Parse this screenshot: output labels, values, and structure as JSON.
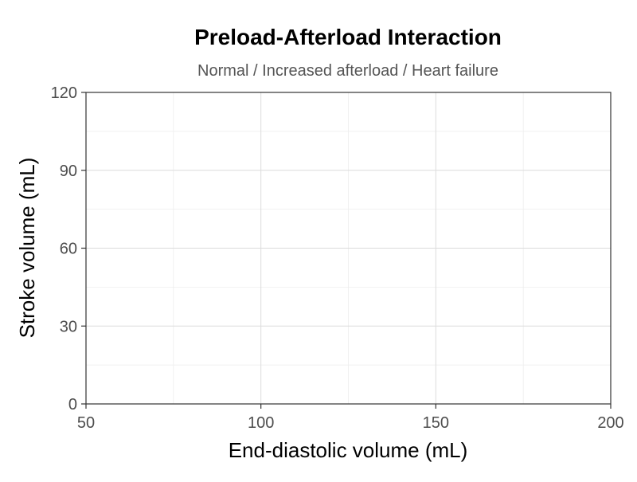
{
  "chart_data": {
    "type": "line",
    "title": "Preload-Afterload Interaction",
    "subtitle": "Normal / Increased afterload / Heart failure",
    "xlabel": "End-diastolic volume (mL)",
    "ylabel": "Stroke volume (mL)",
    "xlim": [
      50,
      200
    ],
    "ylim": [
      0,
      120
    ],
    "x_ticks": [
      50,
      100,
      150,
      200
    ],
    "y_ticks": [
      0,
      30,
      60,
      90,
      120
    ],
    "x_minor_ticks": [
      75,
      125,
      175
    ],
    "y_minor_ticks": [
      15,
      45,
      75,
      105
    ],
    "grid": true,
    "series": []
  }
}
